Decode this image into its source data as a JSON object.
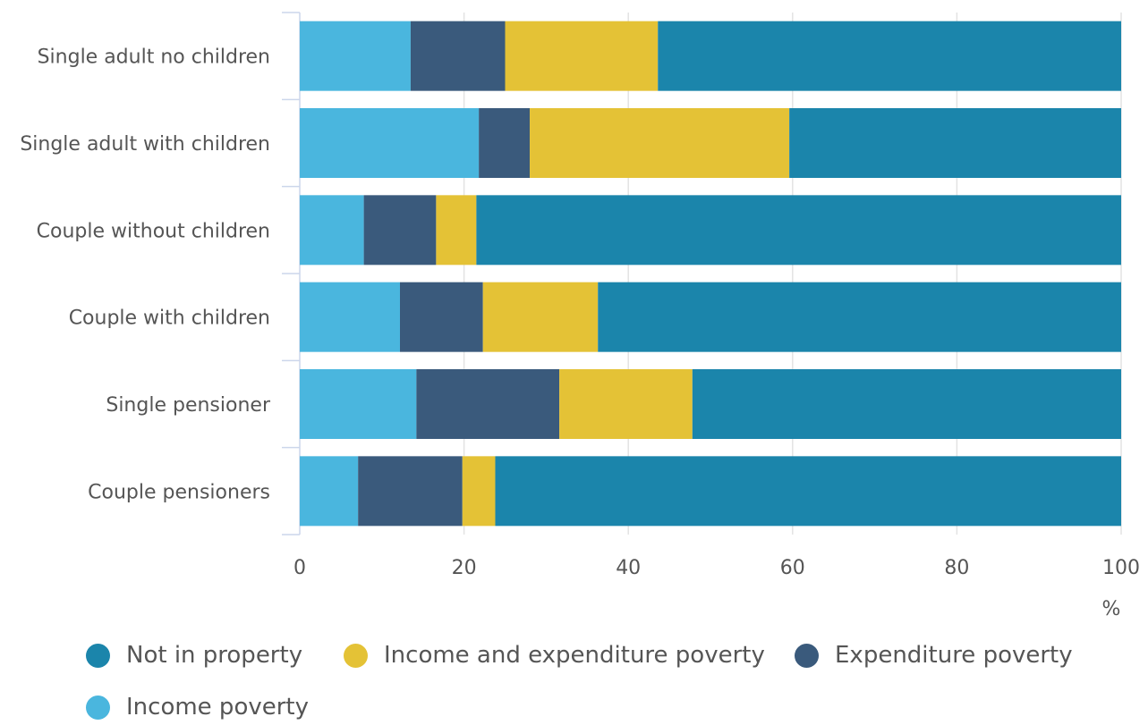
{
  "colors": {
    "not_in_poverty": "#1b85ab",
    "income_and_expenditure_poverty": "#e4c236",
    "expenditure_poverty": "#3a5a7c",
    "income_poverty": "#4ab6de"
  },
  "chart_data": {
    "type": "bar",
    "orientation": "horizontal",
    "stacked": true,
    "categories": [
      "Single adult no children",
      "Single adult with children",
      "Couple without children",
      "Couple with children",
      "Single pensioner",
      "Couple pensioners"
    ],
    "series": [
      {
        "name": "Income poverty",
        "key": "income_poverty",
        "values": [
          13.5,
          21.8,
          7.8,
          12.2,
          14.2,
          7.1
        ]
      },
      {
        "name": "Expenditure poverty",
        "key": "expenditure_poverty",
        "values": [
          11.5,
          6.2,
          8.8,
          10.1,
          17.4,
          12.7
        ]
      },
      {
        "name": "Income and expenditure poverty",
        "key": "income_and_expenditure_poverty",
        "values": [
          18.6,
          31.6,
          4.9,
          14.0,
          16.2,
          4.0
        ]
      },
      {
        "name": "Not in property",
        "key": "not_in_poverty",
        "values": [
          56.4,
          40.4,
          78.5,
          63.7,
          52.2,
          76.2
        ]
      }
    ],
    "xlim": [
      0,
      100
    ],
    "xticks": [
      0,
      20,
      40,
      60,
      80,
      100
    ],
    "xunit": "%",
    "grid": true,
    "legend_position": "bottom",
    "legend_order": [
      "Not in property",
      "Income and expenditure poverty",
      "Expenditure poverty",
      "Income poverty"
    ]
  }
}
